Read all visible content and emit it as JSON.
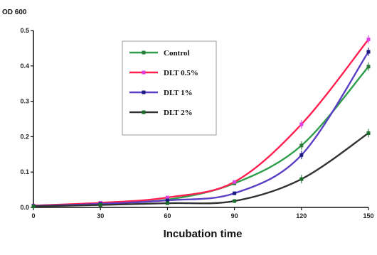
{
  "chart_data": {
    "type": "line",
    "ylabel": "OD 600",
    "xlabel": "Incubation time",
    "x": [
      0,
      30,
      60,
      90,
      120,
      150
    ],
    "xticks": [
      "0",
      "30",
      "60",
      "90",
      "120",
      "150"
    ],
    "yticks": [
      "0.0",
      "0.1",
      "0.2",
      "0.3",
      "0.4",
      "0.5"
    ],
    "xlim": [
      0,
      150
    ],
    "ylim": [
      0,
      0.5
    ],
    "grid": false,
    "legend_position": "top-center",
    "series": [
      {
        "name": "Control",
        "color": "#2e9e4a",
        "marker_color": "#2a7a3a",
        "values": [
          0.005,
          0.012,
          0.022,
          0.068,
          0.175,
          0.398
        ]
      },
      {
        "name": "DLT 0.5%",
        "color": "#ff1f4f",
        "marker_color": "#e040e0",
        "values": [
          0.005,
          0.013,
          0.028,
          0.072,
          0.235,
          0.475
        ]
      },
      {
        "name": "DLT 1%",
        "color": "#5a3fc4",
        "marker_color": "#1a1a80",
        "values": [
          0.004,
          0.01,
          0.02,
          0.04,
          0.148,
          0.44
        ]
      },
      {
        "name": "DLT 2%",
        "color": "#333333",
        "marker_color": "#1a6a2a",
        "values": [
          0.003,
          0.007,
          0.012,
          0.018,
          0.08,
          0.21
        ]
      }
    ]
  }
}
